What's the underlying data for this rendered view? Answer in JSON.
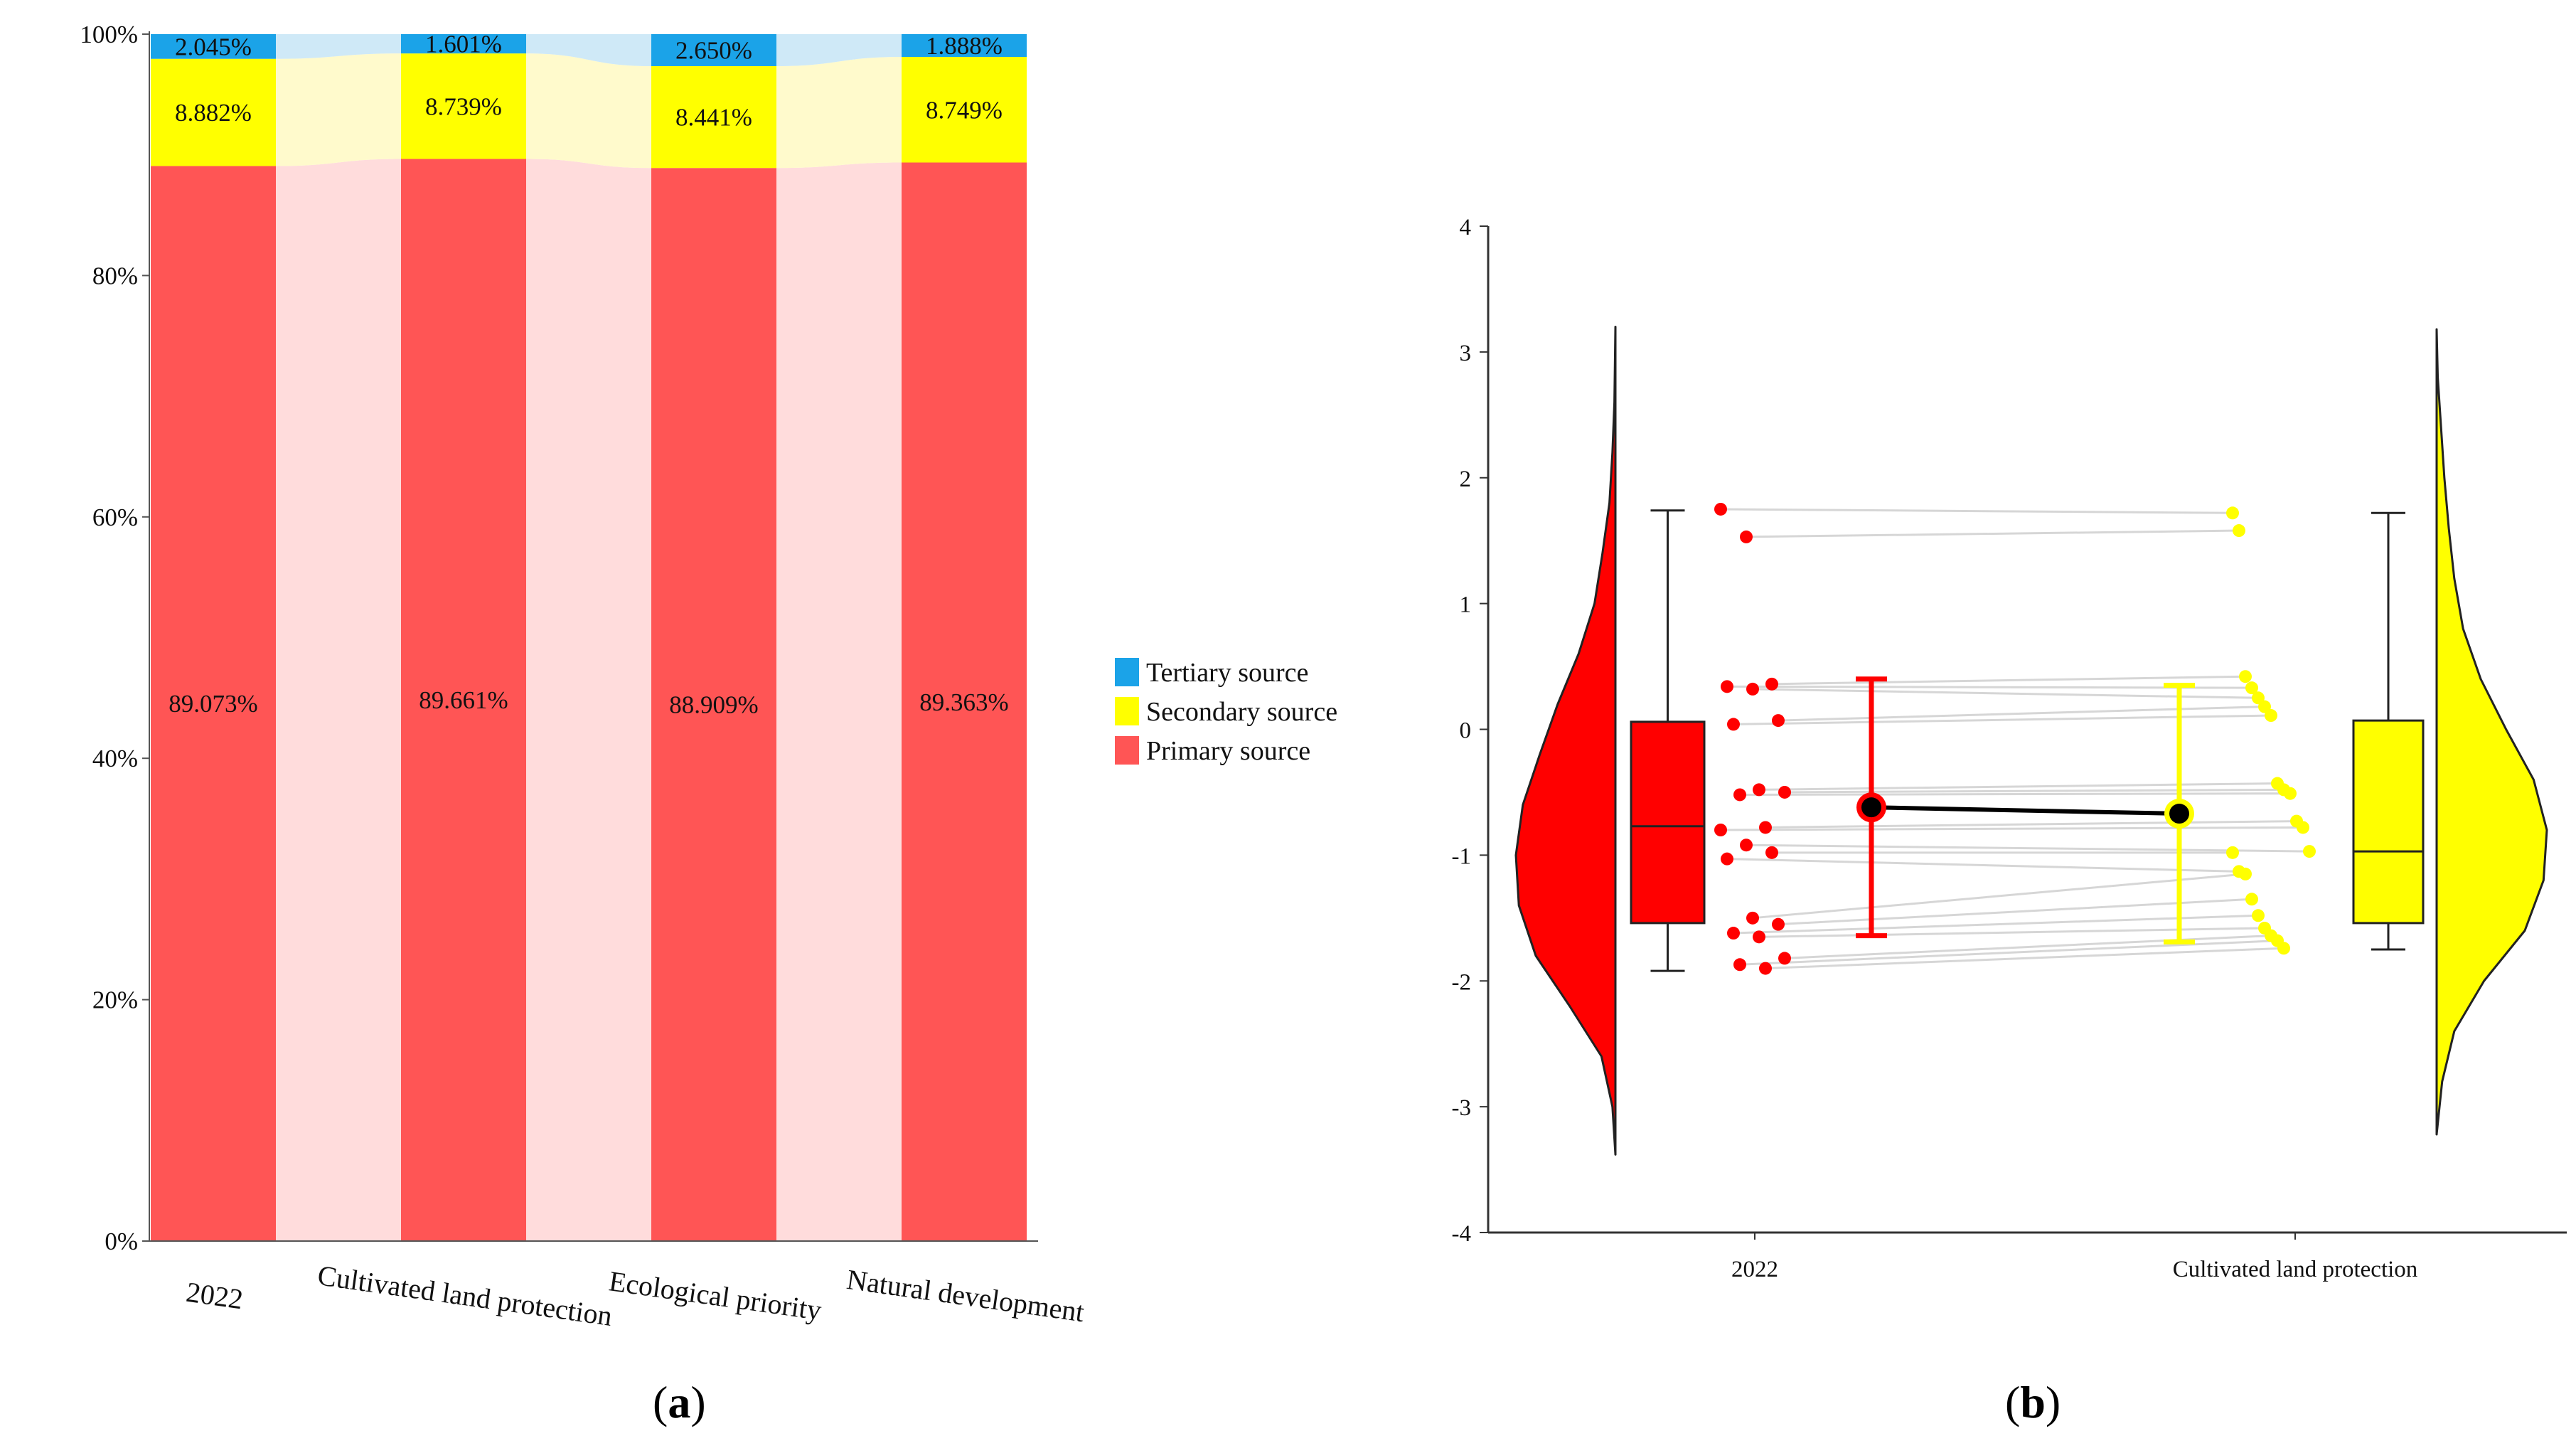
{
  "panel_labels": {
    "a": "a",
    "b": "b"
  },
  "chart_data": [
    {
      "type": "bar",
      "stacked": true,
      "percent": true,
      "title": "",
      "xlabel": "",
      "ylabel": "",
      "ylim": [
        0,
        100
      ],
      "yticks": [
        "0%",
        "20%",
        "40%",
        "60%",
        "80%",
        "100%"
      ],
      "ytick_values": [
        0,
        20,
        40,
        60,
        80,
        100
      ],
      "categories": [
        "2022",
        "Cultivated land protection",
        "Ecological priority",
        "Natural development"
      ],
      "series": [
        {
          "name": "Primary source",
          "values": [
            89.073,
            89.661,
            88.909,
            89.363
          ],
          "labels": [
            "89.073%",
            "89.661%",
            "88.909%",
            "89.363%"
          ],
          "color": "#ff5555",
          "band_color": "#ffdcdc"
        },
        {
          "name": "Secondary source",
          "values": [
            8.882,
            8.739,
            8.441,
            8.749
          ],
          "labels": [
            "8.882%",
            "8.739%",
            "8.441%",
            "8.749%"
          ],
          "color": "#ffff00",
          "band_color": "#fffacc"
        },
        {
          "name": "Tertiary source",
          "values": [
            2.045,
            1.601,
            2.65,
            1.888
          ],
          "labels": [
            "2.045%",
            "1.601%",
            "2.650%",
            "1.888%"
          ],
          "color": "#1ba3e8",
          "band_color": "#cfe9f7"
        }
      ],
      "legend": [
        "Tertiary source",
        "Secondary source",
        "Primary source"
      ],
      "legend_position": "right"
    },
    {
      "type": "raincloud",
      "title": "",
      "xlabel": "",
      "ylabel": "",
      "ylim": [
        -4,
        4
      ],
      "yticks": [
        "4",
        "3",
        "2",
        "1",
        "0",
        "-1",
        "-2",
        "-3",
        "-4"
      ],
      "ytick_values": [
        4,
        3,
        2,
        1,
        0,
        -1,
        -2,
        -3,
        -4
      ],
      "categories": [
        "2022",
        "Cultivated land protection"
      ],
      "colors": {
        "2022": "#ff0000",
        "Cultivated land protection": "#ffff00"
      },
      "boxplots": [
        {
          "group": "2022",
          "min": -1.92,
          "q1": -1.54,
          "median": -0.77,
          "q3": 0.06,
          "max": 1.74
        },
        {
          "group": "Cultivated land protection",
          "min": -1.75,
          "q1": -1.54,
          "median": -0.97,
          "q3": 0.07,
          "max": 1.72
        }
      ],
      "means": [
        {
          "group": "2022",
          "mean": -0.62,
          "ci_low": -1.64,
          "ci_high": 0.4
        },
        {
          "group": "Cultivated land protection",
          "mean": -0.67,
          "ci_low": -1.69,
          "ci_high": 0.35
        }
      ],
      "paired_points": [
        [
          1.75,
          1.72
        ],
        [
          1.53,
          1.58
        ],
        [
          0.36,
          0.42
        ],
        [
          0.34,
          0.33
        ],
        [
          0.32,
          0.25
        ],
        [
          0.07,
          0.18
        ],
        [
          0.04,
          0.11
        ],
        [
          -0.48,
          -0.43
        ],
        [
          -0.5,
          -0.48
        ],
        [
          -0.52,
          -0.51
        ],
        [
          -0.78,
          -0.73
        ],
        [
          -0.8,
          -0.78
        ],
        [
          -0.92,
          -0.97
        ],
        [
          -0.98,
          -0.98
        ],
        [
          -1.03,
          -1.13
        ],
        [
          -1.5,
          -1.15
        ],
        [
          -1.55,
          -1.35
        ],
        [
          -1.62,
          -1.48
        ],
        [
          -1.65,
          -1.58
        ],
        [
          -1.82,
          -1.64
        ],
        [
          -1.87,
          -1.68
        ],
        [
          -1.9,
          -1.74
        ]
      ],
      "density_2022": [
        [
          -3.38,
          0.0
        ],
        [
          -3.0,
          0.03
        ],
        [
          -2.6,
          0.14
        ],
        [
          -2.2,
          0.46
        ],
        [
          -1.8,
          0.8
        ],
        [
          -1.4,
          0.97
        ],
        [
          -1.0,
          1.0
        ],
        [
          -0.6,
          0.93
        ],
        [
          -0.2,
          0.76
        ],
        [
          0.2,
          0.58
        ],
        [
          0.6,
          0.37
        ],
        [
          1.0,
          0.21
        ],
        [
          1.4,
          0.13
        ],
        [
          1.8,
          0.06
        ],
        [
          2.2,
          0.03
        ],
        [
          2.6,
          0.01
        ],
        [
          3.2,
          0.0
        ]
      ],
      "density_cultivated": [
        [
          -3.22,
          0.0
        ],
        [
          -2.8,
          0.05
        ],
        [
          -2.4,
          0.16
        ],
        [
          -2.0,
          0.43
        ],
        [
          -1.6,
          0.8
        ],
        [
          -1.2,
          0.97
        ],
        [
          -0.8,
          1.0
        ],
        [
          -0.4,
          0.88
        ],
        [
          0.0,
          0.63
        ],
        [
          0.4,
          0.4
        ],
        [
          0.8,
          0.24
        ],
        [
          1.2,
          0.16
        ],
        [
          1.6,
          0.11
        ],
        [
          2.0,
          0.07
        ],
        [
          2.4,
          0.04
        ],
        [
          2.8,
          0.01
        ],
        [
          3.18,
          0.0
        ]
      ]
    }
  ]
}
